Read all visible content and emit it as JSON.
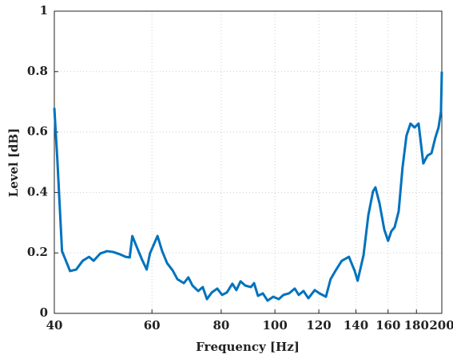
{
  "chart_data": {
    "type": "line",
    "x_label": "Frequency [Hz]",
    "y_label": "Level [dB]",
    "x": [
      40,
      40.5,
      41.3,
      42.7,
      43.8,
      45,
      46.2,
      47.1,
      48.4,
      49.8,
      51.1,
      52.6,
      53.8,
      54.7,
      55.3,
      56.5,
      57.6,
      58.7,
      59.5,
      61.4,
      62.6,
      63.9,
      65.4,
      66.7,
      68.5,
      69.8,
      71,
      72.7,
      74.1,
      75.4,
      76.9,
      78.7,
      80.3,
      81.9,
      83.8,
      85.2,
      86.7,
      88.4,
      90.5,
      91.7,
      93.2,
      95.1,
      97,
      99.3,
      101.6,
      103.6,
      106,
      108.6,
      110.4,
      112.6,
      114.9,
      118,
      120.4,
      123.6,
      126,
      129,
      132,
      136,
      139.3,
      141,
      144.5,
      147.4,
      150.3,
      151.8,
      154.4,
      157.5,
      160,
      162.2,
      164.4,
      167.2,
      169.9,
      172.7,
      175.6,
      178.6,
      181.6,
      185.2,
      188.4,
      191.6,
      194.8,
      197.3,
      199.3,
      200
    ],
    "series": [
      {
        "color": "#0072bd",
        "values": [
          0.68,
          0.51,
          0.206,
          0.14,
          0.145,
          0.174,
          0.187,
          0.174,
          0.198,
          0.206,
          0.203,
          0.195,
          0.187,
          0.185,
          0.256,
          0.214,
          0.177,
          0.145,
          0.198,
          0.256,
          0.206,
          0.166,
          0.142,
          0.113,
          0.1,
          0.119,
          0.092,
          0.074,
          0.087,
          0.047,
          0.069,
          0.082,
          0.061,
          0.069,
          0.098,
          0.077,
          0.106,
          0.092,
          0.087,
          0.1,
          0.058,
          0.066,
          0.042,
          0.055,
          0.047,
          0.061,
          0.066,
          0.082,
          0.061,
          0.074,
          0.05,
          0.077,
          0.066,
          0.055,
          0.113,
          0.145,
          0.174,
          0.187,
          0.14,
          0.108,
          0.193,
          0.325,
          0.404,
          0.417,
          0.364,
          0.277,
          0.24,
          0.272,
          0.285,
          0.338,
          0.483,
          0.588,
          0.628,
          0.615,
          0.628,
          0.496,
          0.522,
          0.53,
          0.583,
          0.615,
          0.668,
          0.8
        ]
      }
    ],
    "xlim": [
      40,
      200
    ],
    "xticks": [
      40,
      60,
      80,
      100,
      120,
      140,
      160,
      180,
      200
    ],
    "xscale": "log",
    "ylim": [
      0,
      1
    ],
    "yticks": [
      0,
      0.2,
      0.4,
      0.6,
      0.8,
      1
    ],
    "grid": true
  }
}
